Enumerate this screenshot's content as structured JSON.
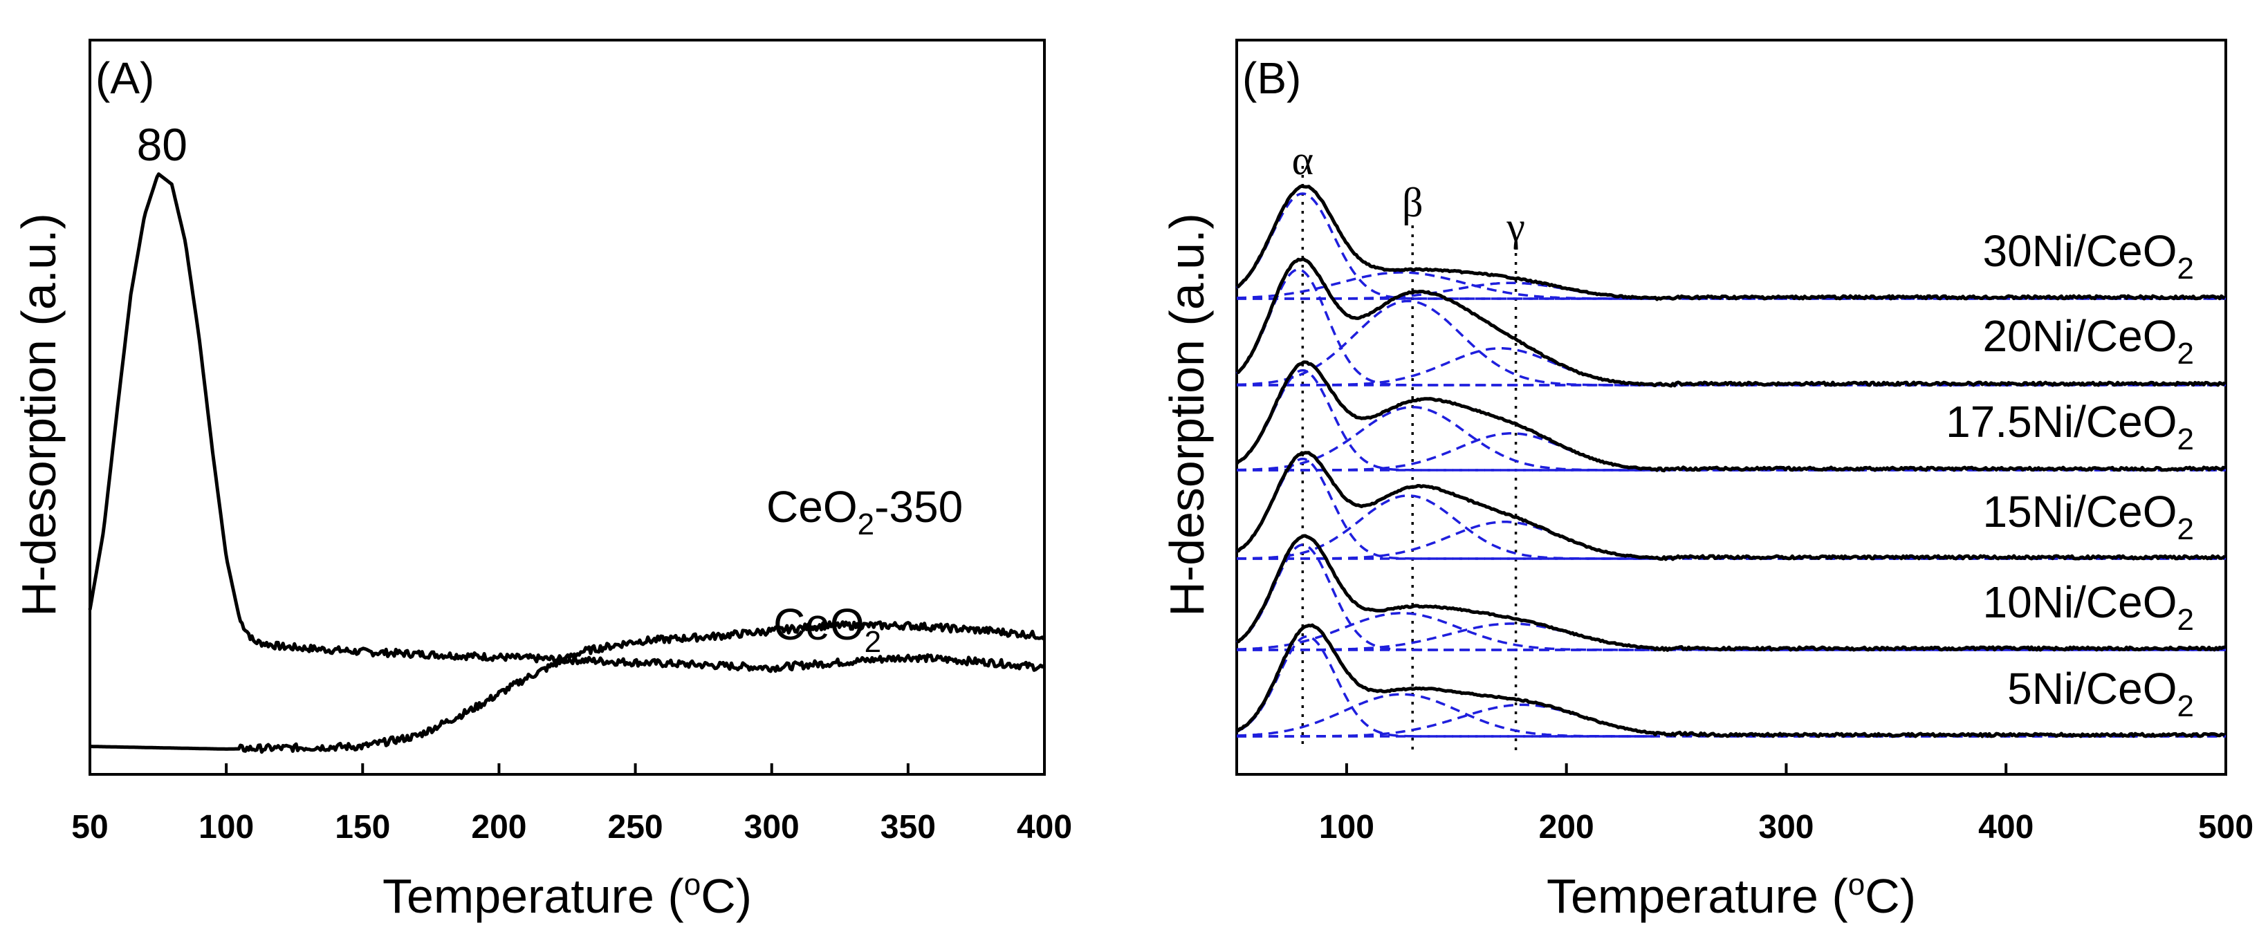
{
  "chart_data": [
    {
      "type": "line",
      "panel_label": "(A)",
      "xlabel": "Temperature (",
      "xlabel_sup": "o",
      "xlabel_end": "C)",
      "ylabel": "H-desorption (a.u.)",
      "xlim": [
        50,
        400
      ],
      "xticks": [
        "50",
        "100",
        "150",
        "200",
        "250",
        "300",
        "350",
        "400"
      ],
      "peak_annotation": {
        "text": "80",
        "x": 80
      },
      "series": [
        {
          "name": "CeO",
          "name_sub": "2",
          "name_rest": "-350",
          "points": [
            [
              50,
              0.3
            ],
            [
              55,
              0.45
            ],
            [
              60,
              0.68
            ],
            [
              65,
              0.9
            ],
            [
              70,
              1.05
            ],
            [
              75,
              1.13
            ],
            [
              80,
              1.11
            ],
            [
              85,
              1.0
            ],
            [
              90,
              0.82
            ],
            [
              95,
              0.6
            ],
            [
              100,
              0.4
            ],
            [
              105,
              0.28
            ],
            [
              110,
              0.24
            ],
            [
              120,
              0.23
            ],
            [
              150,
              0.22
            ],
            [
              200,
              0.21
            ],
            [
              250,
              0.2
            ],
            [
              300,
              0.19
            ],
            [
              350,
              0.21
            ],
            [
              380,
              0.2
            ],
            [
              400,
              0.19
            ]
          ]
        },
        {
          "name": "CeO",
          "name_sub": "2",
          "name_rest": "",
          "points": [
            [
              50,
              0.04
            ],
            [
              100,
              0.035
            ],
            [
              150,
              0.04
            ],
            [
              170,
              0.06
            ],
            [
              190,
              0.11
            ],
            [
              210,
              0.17
            ],
            [
              230,
              0.22
            ],
            [
              250,
              0.24
            ],
            [
              280,
              0.25
            ],
            [
              300,
              0.26
            ],
            [
              320,
              0.27
            ],
            [
              350,
              0.27
            ],
            [
              380,
              0.26
            ],
            [
              400,
              0.25
            ]
          ]
        }
      ]
    },
    {
      "type": "line",
      "panel_label": "(B)",
      "xlabel": "Temperature (",
      "xlabel_sup": "o",
      "xlabel_end": "C)",
      "ylabel": "H-desorption (a.u.)",
      "xlim": [
        50,
        500
      ],
      "xticks": [
        "100",
        "200",
        "300",
        "400",
        "500"
      ],
      "peak_markers": [
        {
          "symbol": "α",
          "x": 80
        },
        {
          "symbol": "β",
          "x": 130
        },
        {
          "symbol": "γ",
          "x": 177
        }
      ],
      "series": [
        {
          "name": "30Ni/CeO",
          "name_sub": "2",
          "peaks": [
            [
              80,
              0.2,
              14
            ],
            [
              125,
              0.05,
              28
            ],
            [
              175,
              0.03,
              25
            ]
          ],
          "tail_end": 220
        },
        {
          "name": "20Ni/CeO",
          "name_sub": "2",
          "peaks": [
            [
              78,
              0.22,
              13
            ],
            [
              128,
              0.16,
              24
            ],
            [
              170,
              0.07,
              24
            ]
          ],
          "tail_end": 225
        },
        {
          "name": "17.5Ni/CeO",
          "name_sub": "2",
          "peaks": [
            [
              80,
              0.19,
              13
            ],
            [
              130,
              0.12,
              24
            ],
            [
              175,
              0.07,
              24
            ]
          ],
          "tail_end": 230
        },
        {
          "name": "15Ni/CeO",
          "name_sub": "2",
          "peaks": [
            [
              80,
              0.19,
              13
            ],
            [
              128,
              0.12,
              22
            ],
            [
              172,
              0.07,
              25
            ]
          ],
          "tail_end": 230
        },
        {
          "name": "10Ni/CeO",
          "name_sub": "2",
          "peaks": [
            [
              80,
              0.2,
              13
            ],
            [
              125,
              0.07,
              26
            ],
            [
              175,
              0.05,
              28
            ]
          ],
          "tail_end": 230
        },
        {
          "name": "5Ni/CeO",
          "name_sub": "2",
          "peaks": [
            [
              82,
              0.19,
              13
            ],
            [
              125,
              0.08,
              26
            ],
            [
              180,
              0.06,
              28
            ]
          ],
          "tail_end": 240
        }
      ]
    }
  ]
}
